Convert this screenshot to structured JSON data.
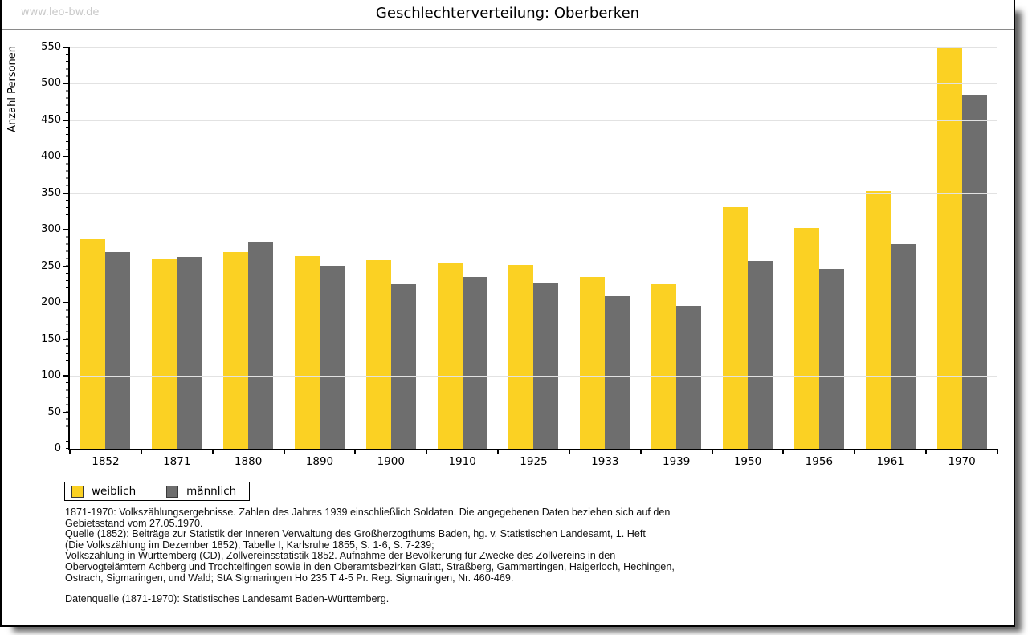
{
  "page": {
    "watermark": "www.leo-bw.de",
    "title": "Geschlechterverteilung: Oberberken"
  },
  "chart_data": {
    "type": "bar",
    "title": "Geschlechterverteilung: Oberberken",
    "xlabel": "",
    "ylabel": "Anzahl Personen",
    "ylim": [
      0,
      550
    ],
    "ytick_step": 50,
    "ytick_minor_step": 10,
    "grid": "horizontal",
    "legend_position": "bottom-left",
    "categories": [
      "1852",
      "1871",
      "1880",
      "1890",
      "1900",
      "1910",
      "1925",
      "1933",
      "1939",
      "1950",
      "1956",
      "1961",
      "1970"
    ],
    "series": [
      {
        "name": "weiblich",
        "color": "#FBD123",
        "values": [
          287,
          260,
          269,
          264,
          258,
          254,
          252,
          235,
          225,
          331,
          302,
          353,
          551
        ]
      },
      {
        "name": "männlich",
        "color": "#6E6E6E",
        "values": [
          270,
          263,
          284,
          251,
          226,
          235,
          228,
          209,
          196,
          257,
          246,
          281,
          485
        ]
      }
    ]
  },
  "legend": {
    "items": [
      {
        "label": "weiblich",
        "color": "#FBD123"
      },
      {
        "label": "männlich",
        "color": "#6E6E6E"
      }
    ]
  },
  "footnotes": {
    "lines": [
      "1871-1970: Volkszählungsergebnisse. Zahlen des Jahres 1939 einschließlich Soldaten. Die angegebenen Daten beziehen sich auf den",
      "Gebietsstand vom 27.05.1970.",
      "Quelle (1852): Beiträge zur Statistik der Inneren Verwaltung des Großherzogthums Baden, hg. v. Statistischen Landesamt, 1. Heft",
      "(Die Volkszählung im Dezember 1852), Tabelle I, Karlsruhe 1855, S. 1-6, S. 7-239;",
      "Volkszählung in Württemberg (CD), Zollvereinsstatistik 1852. Aufnahme der Bevölkerung für Zwecke des Zollvereins in den",
      "Obervogteiämtern Achberg und Trochtelfingen sowie in den Oberamtsbezirken Glatt, Straßberg, Gammertingen, Haigerloch, Hechingen,",
      "Ostrach, Sigmaringen, und Wald; StA Sigmaringen Ho 235 T 4-5 Pr. Reg. Sigmaringen, Nr. 460-469."
    ],
    "datasource": "Datenquelle (1871-1970): Statistisches Landesamt Baden-Württemberg."
  },
  "colors": {
    "female_bar": "#FBD123",
    "male_bar": "#6E6E6E",
    "gridline": "#e2e2e2",
    "axis": "#000000",
    "watermark_text": "#c9c9c9"
  }
}
